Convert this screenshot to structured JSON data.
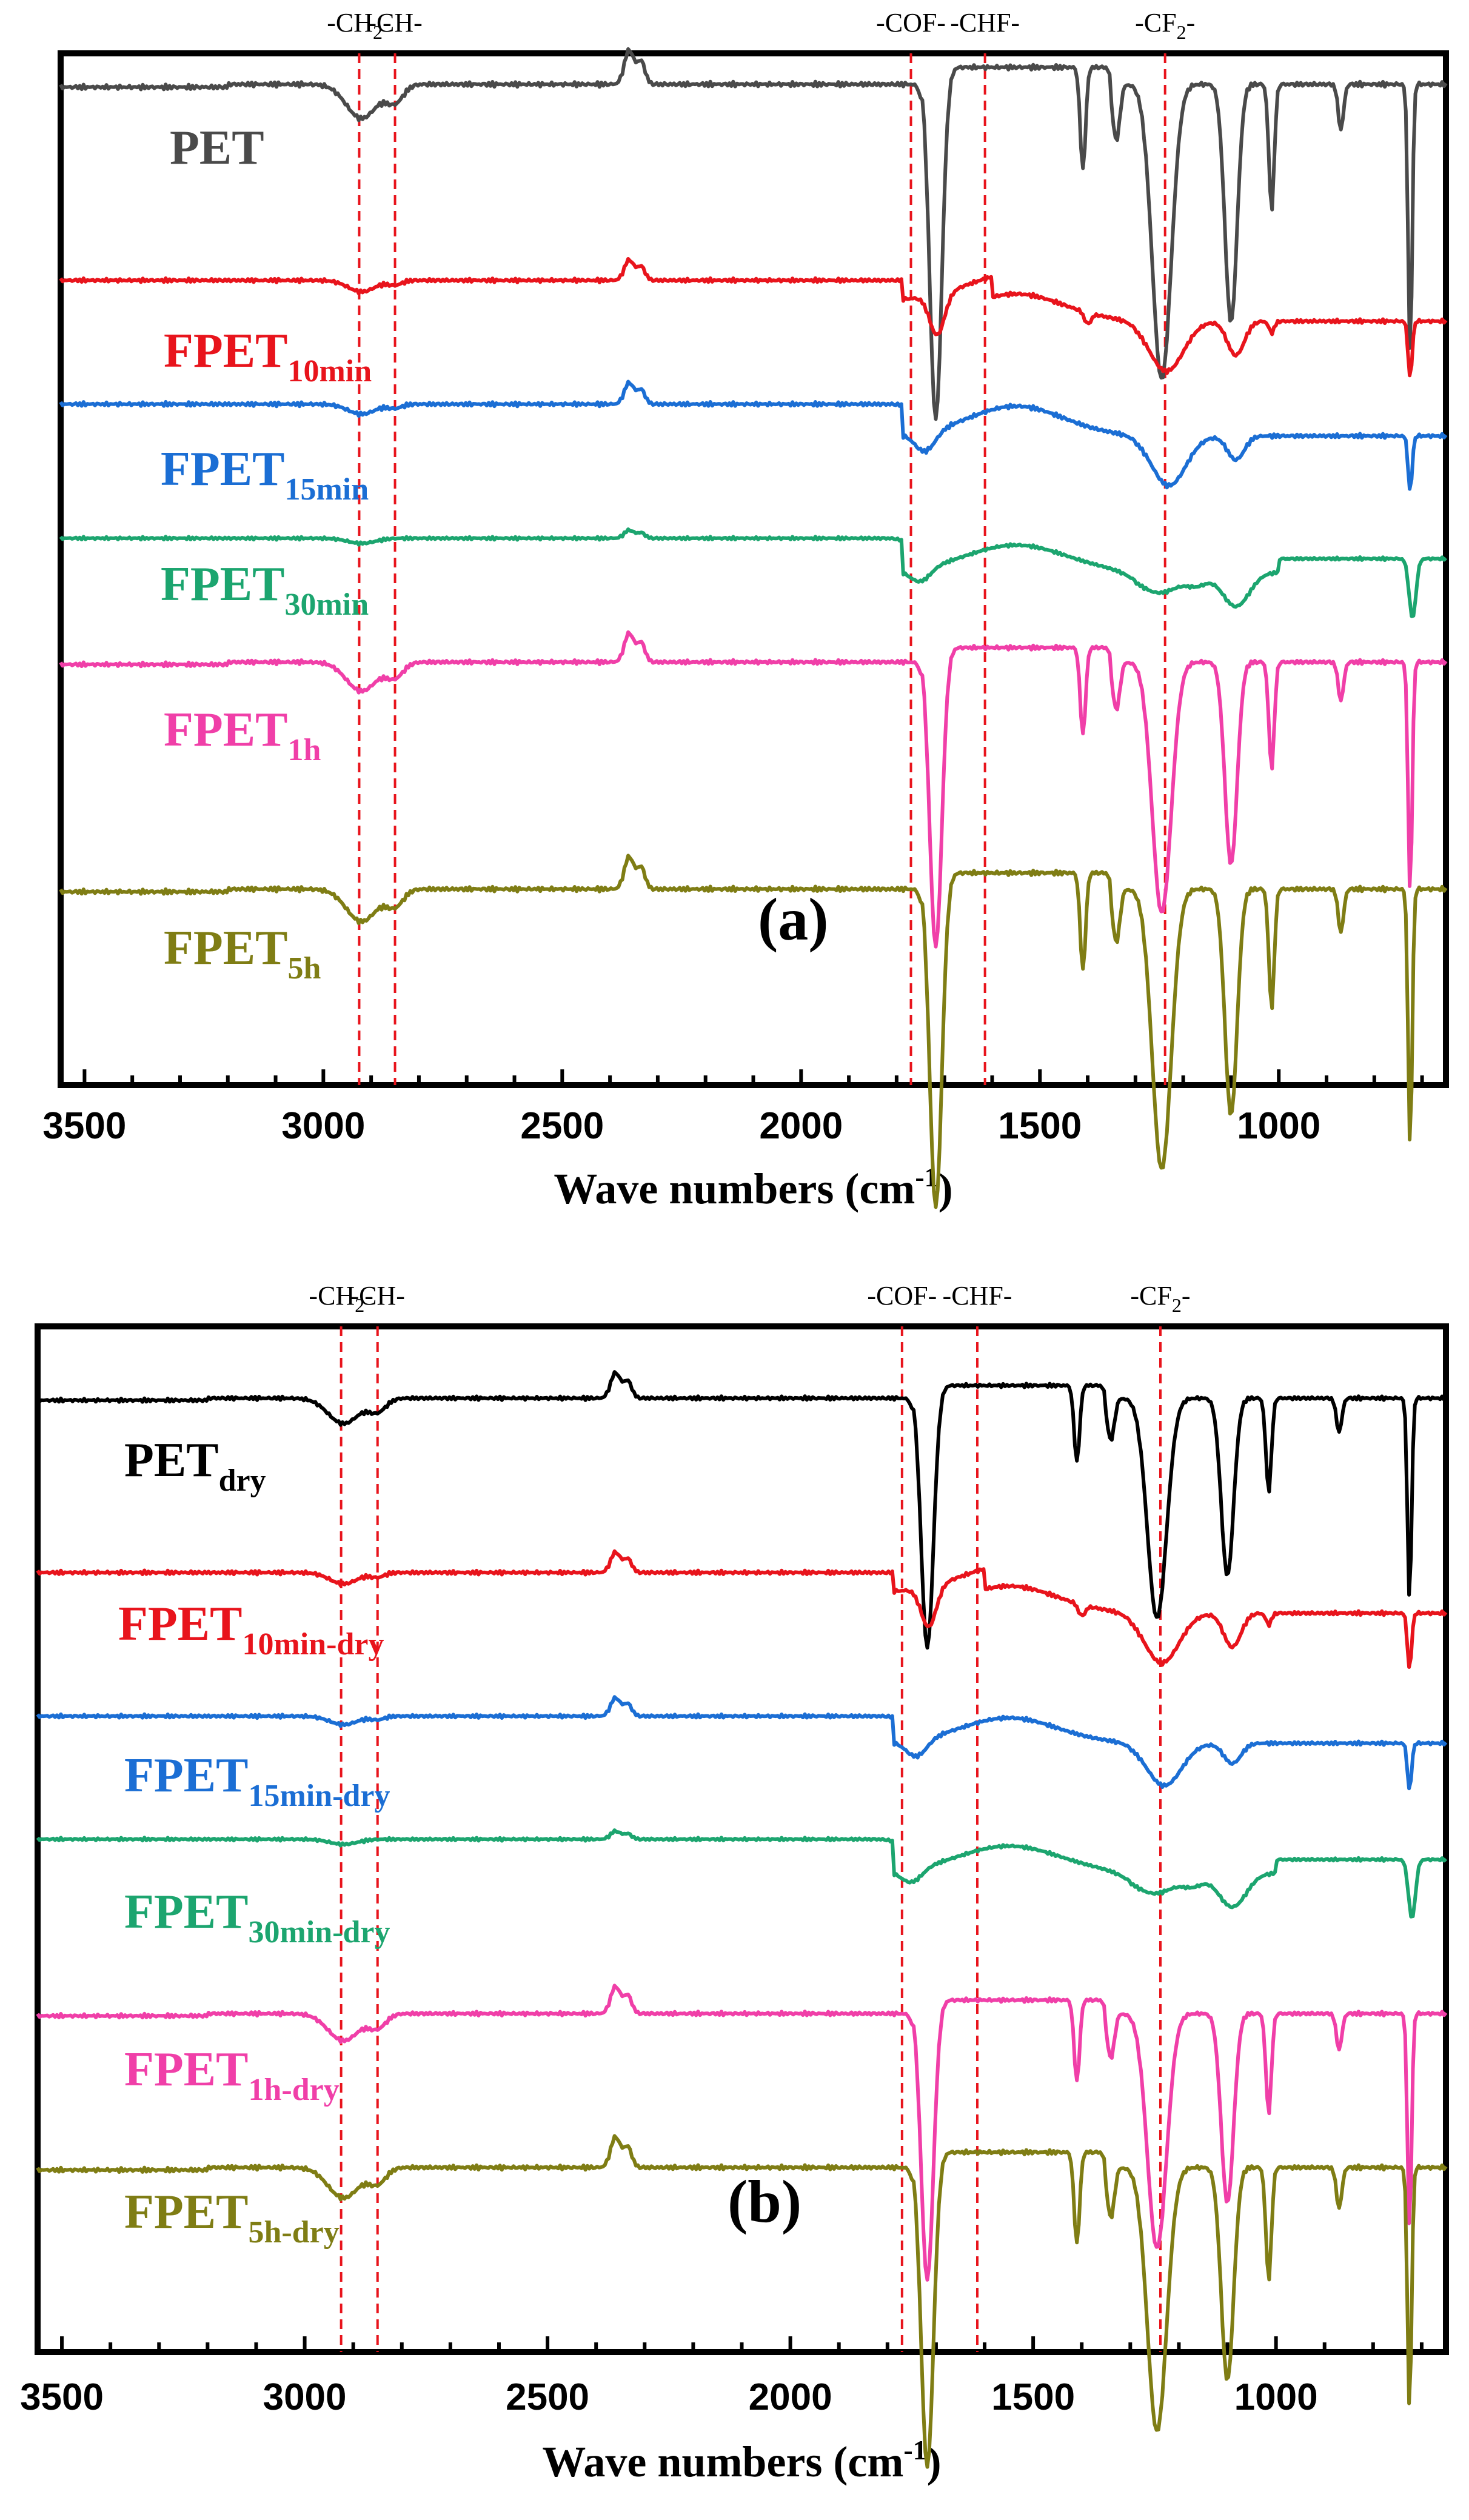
{
  "figure": {
    "xlabel_main": "Wave numbers (cm",
    "xlabel_sup": "-1",
    "xlabel_end": ")"
  },
  "chart_data": [
    {
      "type": "line",
      "panel": "(a)",
      "xlabel": "Wave numbers (cm-1)",
      "ylabel": "",
      "xlim": [
        3550,
        650
      ],
      "x_reversed": true,
      "xticks": [
        3500,
        3000,
        2500,
        2000,
        1500,
        1000
      ],
      "xtick_labels": [
        "3500",
        "3000",
        "2500",
        "2000",
        "1500",
        "1000"
      ],
      "grid": false,
      "band_markers": [
        {
          "label": "-CH2-",
          "main": "-CH",
          "sub": "2",
          "end": "-",
          "x": 2925
        },
        {
          "label": "-CH-",
          "main": "-CH-",
          "sub": "",
          "end": "",
          "x": 2850
        },
        {
          "label": "-COF-",
          "main": "-COF-",
          "sub": "",
          "end": "",
          "x": 1770
        },
        {
          "label": "-CHF-",
          "main": "-CHF-",
          "sub": "",
          "end": "",
          "x": 1615
        },
        {
          "label": "-CF2-",
          "main": "-CF",
          "sub": "2",
          "end": "-",
          "x": 1238
        }
      ],
      "series": [
        {
          "name": "PET",
          "main": "PET",
          "sub": "",
          "color": "#4a4a4a",
          "baseline": 0.97,
          "scale": 1.0,
          "kind": "pet"
        },
        {
          "name": "FPET10min",
          "main": "FPET",
          "sub": "10min",
          "color": "#e8141c",
          "baseline": 0.78,
          "scale": 0.4,
          "kind": "f1"
        },
        {
          "name": "FPET15min",
          "main": "FPET",
          "sub": "15min",
          "color": "#1b6ed4",
          "baseline": 0.66,
          "scale": 0.35,
          "kind": "f2"
        },
        {
          "name": "FPET30min",
          "main": "FPET",
          "sub": "30min",
          "color": "#1ca56f",
          "baseline": 0.53,
          "scale": 0.3,
          "kind": "f3"
        },
        {
          "name": "FPET1h",
          "main": "FPET",
          "sub": "1h",
          "color": "#f03fa8",
          "baseline": 0.41,
          "scale": 0.85,
          "kind": "pet"
        },
        {
          "name": "FPET5h",
          "main": "FPET",
          "sub": "5h",
          "color": "#7f7d14",
          "baseline": 0.19,
          "scale": 0.95,
          "kind": "pet"
        }
      ]
    },
    {
      "type": "line",
      "panel": "(b)",
      "xlabel": "Wave numbers (cm-1)",
      "ylabel": "",
      "xlim": [
        3550,
        650
      ],
      "x_reversed": true,
      "xticks": [
        3500,
        3000,
        2500,
        2000,
        1500,
        1000
      ],
      "xtick_labels": [
        "3500",
        "3000",
        "2500",
        "2000",
        "1500",
        "1000"
      ],
      "grid": false,
      "band_markers": [
        {
          "label": "-CH2-",
          "main": "-CH",
          "sub": "2",
          "end": "-",
          "x": 2925
        },
        {
          "label": "-CH-",
          "main": "-CH-",
          "sub": "",
          "end": "",
          "x": 2850
        },
        {
          "label": "-COF-",
          "main": "-COF-",
          "sub": "",
          "end": "",
          "x": 1770
        },
        {
          "label": "-CHF-",
          "main": "-CHF-",
          "sub": "",
          "end": "",
          "x": 1615
        },
        {
          "label": "-CF2-",
          "main": "-CF",
          "sub": "2",
          "end": "-",
          "x": 1238
        }
      ],
      "series": [
        {
          "name": "PETdry",
          "main": "PET",
          "sub": "dry",
          "color": "#000000",
          "baseline": 0.93,
          "scale": 0.75,
          "kind": "pet"
        },
        {
          "name": "FPET10min-dry",
          "main": "FPET",
          "sub": "10min-dry",
          "color": "#e8141c",
          "baseline": 0.76,
          "scale": 0.4,
          "kind": "f1"
        },
        {
          "name": "FPET15min-dry",
          "main": "FPET",
          "sub": "15min-dry",
          "color": "#1b6ed4",
          "baseline": 0.62,
          "scale": 0.3,
          "kind": "f2"
        },
        {
          "name": "FPET30min-dry",
          "main": "FPET",
          "sub": "30min-dry",
          "color": "#1ca56f",
          "baseline": 0.5,
          "scale": 0.3,
          "kind": "f3"
        },
        {
          "name": "FPET1h-dry",
          "main": "FPET",
          "sub": "1h-dry",
          "color": "#f03fa8",
          "baseline": 0.33,
          "scale": 0.8,
          "kind": "pet"
        },
        {
          "name": "FPET5h-dry",
          "main": "FPET",
          "sub": "5h-dry",
          "color": "#7f7d14",
          "baseline": 0.18,
          "scale": 0.9,
          "kind": "pet"
        }
      ]
    }
  ]
}
